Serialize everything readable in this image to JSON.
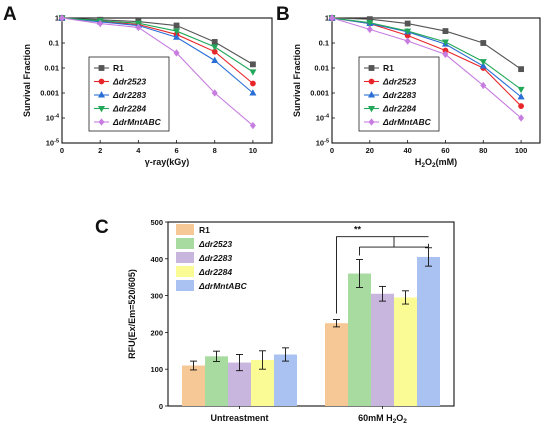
{
  "chart_data": [
    {
      "panel": "A",
      "type": "line",
      "xlabel": "γ-ray(kGy)",
      "ylabel": "Survival Fraction",
      "x": [
        0,
        2,
        4,
        6,
        8,
        10
      ],
      "xlim": [
        0,
        11
      ],
      "xticks": [
        "0",
        "2",
        "4",
        "6",
        "8",
        "10"
      ],
      "yscale": "log",
      "ylim": [
        1e-05,
        1
      ],
      "yticks": [
        "1",
        "0.1",
        "0.01",
        "0.001",
        "10-4",
        "10-5"
      ],
      "legend_position": "bottom-left",
      "series": [
        {
          "name": "R1",
          "color": "#555555",
          "marker": "square",
          "values": [
            1,
            0.85,
            0.72,
            0.5,
            0.11,
            0.014
          ]
        },
        {
          "name": "Δdr2523",
          "color": "#e8262a",
          "marker": "circle",
          "values": [
            1,
            0.72,
            0.55,
            0.22,
            0.045,
            0.0024
          ]
        },
        {
          "name": "Δdr2283",
          "color": "#2a6fd6",
          "marker": "triangle-up",
          "values": [
            1,
            0.7,
            0.5,
            0.17,
            0.02,
            0.001
          ]
        },
        {
          "name": "Δdr2284",
          "color": "#23a85a",
          "marker": "triangle-down",
          "values": [
            1,
            0.78,
            0.62,
            0.3,
            0.07,
            0.007
          ]
        },
        {
          "name": "ΔdrMntABC",
          "color": "#c77de0",
          "marker": "diamond",
          "values": [
            1,
            0.6,
            0.42,
            0.04,
            0.001,
            5e-05
          ]
        }
      ]
    },
    {
      "panel": "B",
      "type": "line",
      "xlabel_parts": [
        "H",
        "2",
        "O",
        "2",
        "(mM)"
      ],
      "ylabel": "Survival Fraction",
      "x": [
        0,
        20,
        40,
        60,
        80,
        100
      ],
      "xlim": [
        0,
        110
      ],
      "xticks": [
        "0",
        "20",
        "40",
        "60",
        "80",
        "100"
      ],
      "yscale": "log",
      "ylim": [
        1e-05,
        1
      ],
      "yticks": [
        "1",
        "0.1",
        "0.01",
        "0.001",
        "10-4",
        "10-5"
      ],
      "legend_position": "bottom-left",
      "series": [
        {
          "name": "R1",
          "color": "#555555",
          "marker": "square",
          "values": [
            1,
            0.9,
            0.6,
            0.3,
            0.1,
            0.009
          ]
        },
        {
          "name": "Δdr2523",
          "color": "#e8262a",
          "marker": "circle",
          "values": [
            1,
            0.6,
            0.2,
            0.05,
            0.01,
            0.0003
          ]
        },
        {
          "name": "Δdr2283",
          "color": "#2a6fd6",
          "marker": "triangle-up",
          "values": [
            1,
            0.6,
            0.28,
            0.09,
            0.012,
            0.0007
          ]
        },
        {
          "name": "Δdr2284",
          "color": "#23a85a",
          "marker": "triangle-down",
          "values": [
            1,
            0.65,
            0.3,
            0.11,
            0.018,
            0.0014
          ]
        },
        {
          "name": "ΔdrMntABC",
          "color": "#c77de0",
          "marker": "diamond",
          "values": [
            1,
            0.35,
            0.12,
            0.035,
            0.002,
            0.0001
          ]
        }
      ]
    },
    {
      "panel": "C",
      "type": "bar",
      "ylabel": "RFU(Ex/Em=520/605)",
      "ylim": [
        0,
        500
      ],
      "yticks": [
        0,
        100,
        200,
        300,
        400,
        500
      ],
      "categories": [
        "Untreastment",
        "60mM H2O2"
      ],
      "category_label_parts": [
        [
          "Untreastment"
        ],
        [
          "60mM H",
          "2",
          "O",
          "2"
        ]
      ],
      "legend_position": "top-left",
      "significance": "**",
      "series": [
        {
          "name": "R1",
          "color": "#f6c896",
          "values": [
            110,
            225
          ],
          "errors": [
            12,
            10
          ]
        },
        {
          "name": "Δdr2523",
          "color": "#a8dba0",
          "values": [
            135,
            360
          ],
          "errors": [
            14,
            38
          ]
        },
        {
          "name": "Δdr2283",
          "color": "#c9b6de",
          "values": [
            118,
            305
          ],
          "errors": [
            22,
            20
          ]
        },
        {
          "name": "Δdr2284",
          "color": "#fbfb96",
          "values": [
            125,
            295
          ],
          "errors": [
            25,
            18
          ]
        },
        {
          "name": "ΔdrMntABC",
          "color": "#a9c2f1",
          "values": [
            140,
            405
          ],
          "errors": [
            18,
            25
          ]
        }
      ]
    }
  ]
}
